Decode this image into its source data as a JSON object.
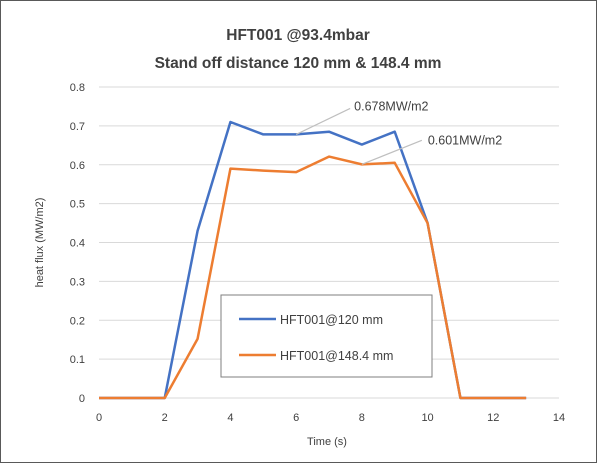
{
  "chart_data": {
    "type": "line",
    "title": "HFT001 @93.4mbar",
    "subtitle": "Stand off distance 120 mm & 148.4 mm",
    "xlabel": "Time (s)",
    "ylabel": "heat flux (MW/m2)",
    "xlim": [
      0,
      14
    ],
    "ylim": [
      0,
      0.8
    ],
    "xticks": [
      0,
      2,
      4,
      6,
      8,
      10,
      12,
      14
    ],
    "yticks": [
      0,
      0.1,
      0.2,
      0.3,
      0.4,
      0.5,
      0.6,
      0.7,
      0.8
    ],
    "grid": true,
    "legend_position": "bottom-center",
    "series": [
      {
        "name": "HFT001@120 mm",
        "color": "#4472C4",
        "x": [
          0,
          1,
          2,
          3,
          4,
          5,
          6,
          7,
          8,
          9,
          10,
          11,
          12,
          13
        ],
        "values": [
          0,
          0,
          0,
          0.43,
          0.71,
          0.678,
          0.678,
          0.685,
          0.652,
          0.685,
          0.45,
          0,
          0,
          0
        ]
      },
      {
        "name": "HFT001@148.4 mm",
        "color": "#ED7D31",
        "x": [
          0,
          1,
          2,
          3,
          4,
          5,
          6,
          7,
          8,
          9,
          10,
          11,
          12,
          13
        ],
        "values": [
          0,
          0,
          0,
          0.152,
          0.59,
          0.585,
          0.581,
          0.621,
          0.601,
          0.605,
          0.45,
          0,
          0,
          0
        ]
      }
    ],
    "annotations": [
      {
        "text": "0.678MW/m2",
        "x": 6,
        "y": 0.678
      },
      {
        "text": "0.601MW/m2",
        "x": 8,
        "y": 0.601
      }
    ]
  }
}
